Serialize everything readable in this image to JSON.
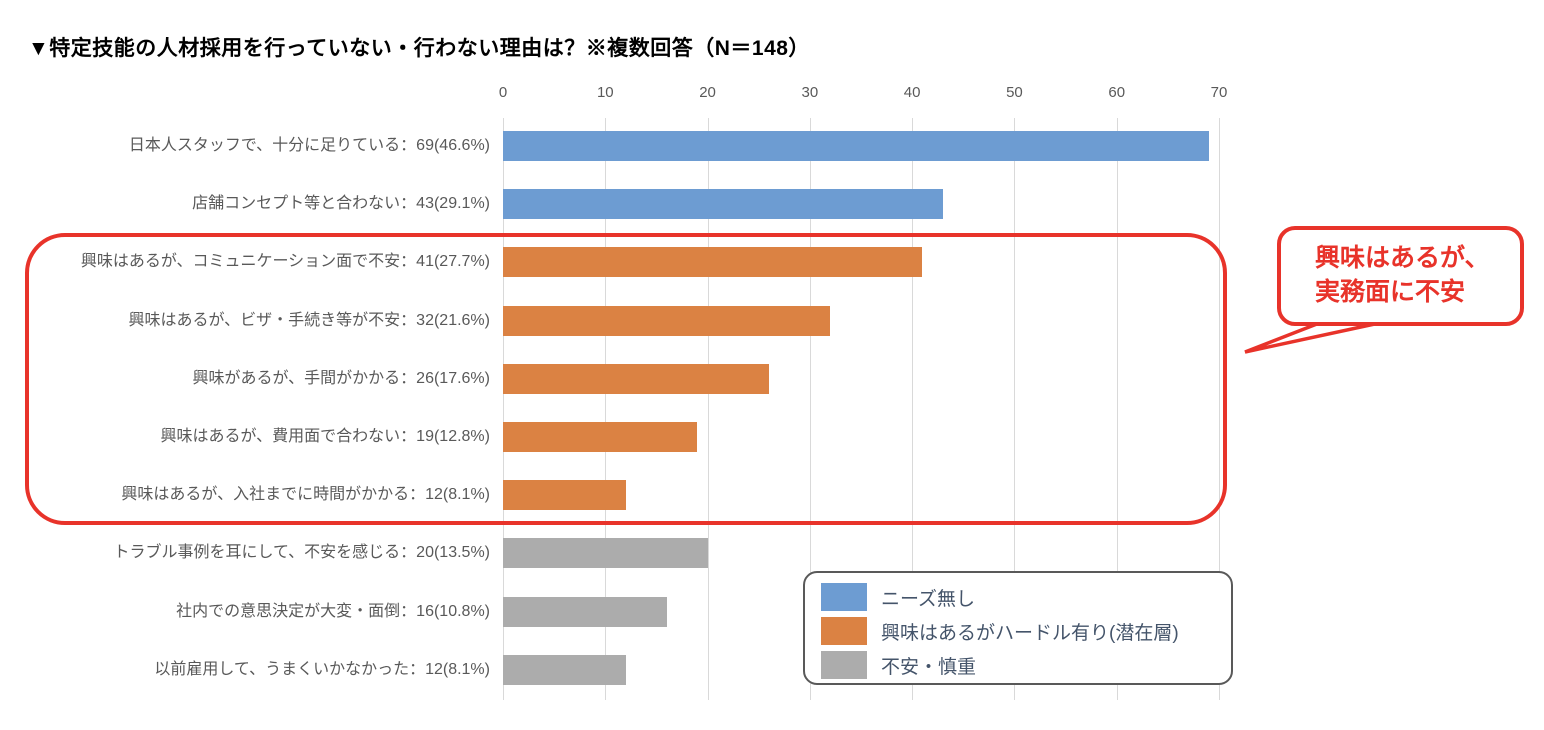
{
  "title": "▼特定技能の人材採用を行っていない・行わない理由は？※複数回答（N＝148）",
  "colors": {
    "blue": "#6D9CD2",
    "orange": "#DB8243",
    "gray": "#ACACAC",
    "red": "#E8332A",
    "grid": "#D9D9D9",
    "axis_text": "#595959",
    "label_text": "#595959",
    "legend_text": "#44546A",
    "legend_border": "#595959",
    "title_text": "#000000"
  },
  "chart_data": {
    "type": "bar",
    "orientation": "horizontal",
    "title": "▼特定技能の人材採用を行っていない・行わない理由は？※複数回答（N＝148）",
    "n_label": "N＝148",
    "xlim": [
      0,
      70
    ],
    "xticks": [
      0,
      10,
      20,
      30,
      40,
      50,
      60,
      70
    ],
    "grid": true,
    "bars": [
      {
        "display": "日本人スタッフで、十分に足りている：69(46.6%)",
        "category": "日本人スタッフで、十分に足りている",
        "value": 69,
        "pct": 46.6,
        "color": "blue",
        "group": "ニーズ無し"
      },
      {
        "display": "店舗コンセプト等と合わない：43(29.1%)",
        "category": "店舗コンセプト等と合わない",
        "value": 43,
        "pct": 29.1,
        "color": "blue",
        "group": "ニーズ無し"
      },
      {
        "display": "興味はあるが、コミュニケーション面で不安：41(27.7%)",
        "category": "興味はあるが、コミュニケーション面で不安",
        "value": 41,
        "pct": 27.7,
        "color": "orange",
        "group": "興味はあるがハードル有り(潜在層)"
      },
      {
        "display": "興味はあるが、ビザ・手続き等が不安：32(21.6%)",
        "category": "興味はあるが、ビザ・手続き等が不安",
        "value": 32,
        "pct": 21.6,
        "color": "orange",
        "group": "興味はあるがハードル有り(潜在層)"
      },
      {
        "display": "興味があるが、手間がかかる：26(17.6%)",
        "category": "興味があるが、手間がかかる",
        "value": 26,
        "pct": 17.6,
        "color": "orange",
        "group": "興味はあるがハードル有り(潜在層)"
      },
      {
        "display": "興味はあるが、費用面で合わない：19(12.8%)",
        "category": "興味はあるが、費用面で合わない",
        "value": 19,
        "pct": 12.8,
        "color": "orange",
        "group": "興味はあるがハードル有り(潜在層)"
      },
      {
        "display": "興味はあるが、入社までに時間がかかる：12(8.1%)",
        "category": "興味はあるが、入社までに時間がかかる",
        "value": 12,
        "pct": 8.1,
        "color": "orange",
        "group": "興味はあるがハードル有り(潜在層)"
      },
      {
        "display": "トラブル事例を耳にして、不安を感じる：20(13.5%)",
        "category": "トラブル事例を耳にして、不安を感じる",
        "value": 20,
        "pct": 13.5,
        "color": "gray",
        "group": "不安・慎重"
      },
      {
        "display": "社内での意思決定が大変・面倒：16(10.8%)",
        "category": "社内での意思決定が大変・面倒",
        "value": 16,
        "pct": 10.8,
        "color": "gray",
        "group": "不安・慎重"
      },
      {
        "display": "以前雇用して、うまくいかなかった：12(8.1%)",
        "category": "以前雇用して、うまくいかなかった",
        "value": 12,
        "pct": 8.1,
        "color": "gray",
        "group": "不安・慎重"
      }
    ],
    "legend": {
      "position": "bottom-right",
      "items": [
        {
          "label": "ニーズ無し",
          "color": "blue"
        },
        {
          "label": "興味はあるがハードル有り(潜在層)",
          "color": "orange"
        },
        {
          "label": "不安・慎重",
          "color": "gray"
        }
      ]
    }
  },
  "annotation": {
    "callout": {
      "line1": "興味はあるが、",
      "line2": "実務面に不安"
    },
    "circled_bar_indexes": [
      2,
      3,
      4,
      5,
      6
    ]
  }
}
